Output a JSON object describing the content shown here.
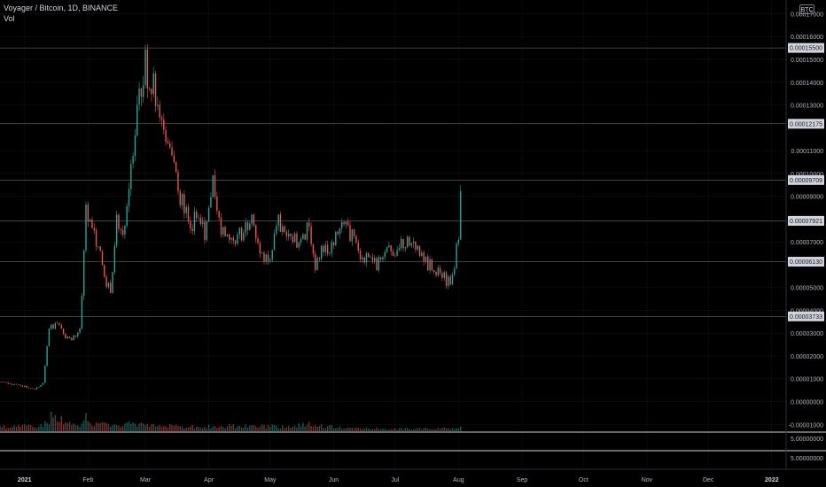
{
  "legend": {
    "symbol_line": "Voyager / Bitcoin, 1D, BINANCE",
    "volume_label": "Vol"
  },
  "currency_badge": "BTC",
  "colors": {
    "background": "#000000",
    "up": "#26a69a",
    "down": "#ef5350",
    "grid": "#2a2e39",
    "text": "#b2b5be"
  },
  "chart_data": {
    "type": "candlestick",
    "series": [
      {
        "name": "Voyager / Bitcoin, 1D, BINANCE"
      },
      {
        "name": "Vol"
      }
    ],
    "xaxis": {
      "min": "2020-12-20",
      "max": "2022-01-08",
      "ticks": [
        {
          "date": "2021-01-01",
          "label": "2021",
          "bold": true
        },
        {
          "date": "2021-02-01",
          "label": "Feb"
        },
        {
          "date": "2021-03-01",
          "label": "Mar"
        },
        {
          "date": "2021-04-01",
          "label": "Apr"
        },
        {
          "date": "2021-05-01",
          "label": "May"
        },
        {
          "date": "2021-06-01",
          "label": "Jun"
        },
        {
          "date": "2021-07-01",
          "label": "Jul"
        },
        {
          "date": "2021-08-01",
          "label": "Aug"
        },
        {
          "date": "2021-09-01",
          "label": "Sep"
        },
        {
          "date": "2021-10-01",
          "label": "Oct"
        },
        {
          "date": "2021-11-01",
          "label": "Nov"
        },
        {
          "date": "2021-12-01",
          "label": "Dec"
        },
        {
          "date": "2022-01-01",
          "label": "2022",
          "bold": true
        }
      ]
    },
    "yaxis": {
      "ylim": [
        -1.3e-05,
        0.000176
      ],
      "ticks": [
        {
          "value": 0.00017,
          "label": "0.00017000"
        },
        {
          "value": 0.00016,
          "label": "0.00016000"
        },
        {
          "value": 0.00015,
          "label": "0.00015000"
        },
        {
          "value": 0.00014,
          "label": "0.00014000"
        },
        {
          "value": 0.00013,
          "label": "0.00013000"
        },
        {
          "value": 0.00011,
          "label": "0.00011000"
        },
        {
          "value": 0.0001,
          "label": "0.00010000"
        },
        {
          "value": 9e-05,
          "label": "0.00009000"
        },
        {
          "value": 7e-05,
          "label": "0.00007000"
        },
        {
          "value": 5e-05,
          "label": "0.00005000"
        },
        {
          "value": 4e-05,
          "label": "0.00004000"
        },
        {
          "value": 3e-05,
          "label": "0.00003000"
        },
        {
          "value": 2e-05,
          "label": "0.00002000"
        },
        {
          "value": 1e-05,
          "label": "0.00001000"
        },
        {
          "value": 0.0,
          "label": "0.00000000"
        },
        {
          "value": -1e-05,
          "label": "-0.00001000"
        }
      ],
      "price_lines": [
        {
          "value": 0.000155,
          "label": "0.00015500"
        },
        {
          "value": 0.00012175,
          "label": "0.00012175"
        },
        {
          "value": 9.709e-05,
          "label": "0.00009709"
        },
        {
          "value": 7.921e-05,
          "label": "0.00007921"
        },
        {
          "value": 6.13e-05,
          "label": "0.00006130"
        },
        {
          "value": 3.733e-05,
          "label": "0.00003733"
        }
      ]
    },
    "sub_panes": [
      {
        "scale_label": "5.00000000"
      },
      {
        "scale_label": "5.00000000"
      }
    ],
    "points": [
      {
        "date": "2020-12-20",
        "close": 8.5e-06
      },
      {
        "date": "2020-12-30",
        "close": 7e-06
      },
      {
        "date": "2021-01-06",
        "close": 5.5e-06
      },
      {
        "date": "2021-01-10",
        "close": 8e-06
      },
      {
        "date": "2021-01-13",
        "close": 3.2e-05
      },
      {
        "date": "2021-01-17",
        "close": 3.4e-05
      },
      {
        "date": "2021-01-20",
        "close": 2.9e-05
      },
      {
        "date": "2021-01-24",
        "close": 2.8e-05
      },
      {
        "date": "2021-01-28",
        "close": 3.1e-05
      },
      {
        "date": "2021-01-31",
        "close": 8.3e-05
      },
      {
        "date": "2021-02-03",
        "close": 7.5e-05
      },
      {
        "date": "2021-02-06",
        "close": 6.7e-05
      },
      {
        "date": "2021-02-10",
        "close": 5.2e-05
      },
      {
        "date": "2021-02-12",
        "close": 4.9e-05
      },
      {
        "date": "2021-02-15",
        "close": 7.8e-05
      },
      {
        "date": "2021-02-18",
        "close": 7.2e-05
      },
      {
        "date": "2021-02-22",
        "close": 0.000105
      },
      {
        "date": "2021-02-25",
        "close": 0.00013
      },
      {
        "date": "2021-03-01",
        "close": 0.000147
      },
      {
        "date": "2021-03-04",
        "close": 0.00014
      },
      {
        "date": "2021-03-08",
        "close": 0.000128
      },
      {
        "date": "2021-03-11",
        "close": 0.000115
      },
      {
        "date": "2021-03-15",
        "close": 0.0001
      },
      {
        "date": "2021-03-19",
        "close": 8.7e-05
      },
      {
        "date": "2021-03-23",
        "close": 7.7e-05
      },
      {
        "date": "2021-03-26",
        "close": 8.2e-05
      },
      {
        "date": "2021-03-30",
        "close": 7.3e-05
      },
      {
        "date": "2021-04-03",
        "close": 9.4e-05
      },
      {
        "date": "2021-04-07",
        "close": 7.6e-05
      },
      {
        "date": "2021-04-10",
        "close": 7.2e-05
      },
      {
        "date": "2021-04-14",
        "close": 6.9e-05
      },
      {
        "date": "2021-04-18",
        "close": 7.6e-05
      },
      {
        "date": "2021-04-21",
        "close": 8e-05
      },
      {
        "date": "2021-04-25",
        "close": 7.2e-05
      },
      {
        "date": "2021-04-28",
        "close": 6e-05
      },
      {
        "date": "2021-05-01",
        "close": 6.5e-05
      },
      {
        "date": "2021-05-04",
        "close": 8e-05
      },
      {
        "date": "2021-05-08",
        "close": 7.4e-05
      },
      {
        "date": "2021-05-12",
        "close": 7e-05
      },
      {
        "date": "2021-05-16",
        "close": 7.1e-05
      },
      {
        "date": "2021-05-20",
        "close": 7.8e-05
      },
      {
        "date": "2021-05-23",
        "close": 5.8e-05
      },
      {
        "date": "2021-05-26",
        "close": 6.5e-05
      },
      {
        "date": "2021-05-30",
        "close": 6.6e-05
      },
      {
        "date": "2021-06-03",
        "close": 7.2e-05
      },
      {
        "date": "2021-06-06",
        "close": 7.9e-05
      },
      {
        "date": "2021-06-10",
        "close": 7.2e-05
      },
      {
        "date": "2021-06-14",
        "close": 6.4e-05
      },
      {
        "date": "2021-06-18",
        "close": 6.2e-05
      },
      {
        "date": "2021-06-22",
        "close": 6e-05
      },
      {
        "date": "2021-06-26",
        "close": 6.4e-05
      },
      {
        "date": "2021-06-30",
        "close": 6.6e-05
      },
      {
        "date": "2021-07-04",
        "close": 7.2e-05
      },
      {
        "date": "2021-07-08",
        "close": 6.8e-05
      },
      {
        "date": "2021-07-12",
        "close": 6.5e-05
      },
      {
        "date": "2021-07-16",
        "close": 6.1e-05
      },
      {
        "date": "2021-07-20",
        "close": 5.8e-05
      },
      {
        "date": "2021-07-24",
        "close": 5.5e-05
      },
      {
        "date": "2021-07-28",
        "close": 5.2e-05
      },
      {
        "date": "2021-07-30",
        "close": 6e-05
      },
      {
        "date": "2021-08-01",
        "close": 7.3e-05
      },
      {
        "date": "2021-08-02",
        "close": 8.9e-05
      }
    ],
    "volume_profile": [
      {
        "date": "2020-12-20",
        "volume": 0.2
      },
      {
        "date": "2021-01-08",
        "volume": 0.25
      },
      {
        "date": "2021-01-12",
        "volume": 0.45
      },
      {
        "date": "2021-01-15",
        "volume": 0.7
      },
      {
        "date": "2021-01-18",
        "volume": 0.55
      },
      {
        "date": "2021-01-24",
        "volume": 0.3
      },
      {
        "date": "2021-01-28",
        "volume": 0.25
      },
      {
        "date": "2021-01-31",
        "volume": 0.9
      },
      {
        "date": "2021-02-02",
        "volume": 0.35
      },
      {
        "date": "2021-02-10",
        "volume": 0.3
      },
      {
        "date": "2021-02-18",
        "volume": 0.35
      },
      {
        "date": "2021-02-25",
        "volume": 0.3
      },
      {
        "date": "2021-03-05",
        "volume": 0.25
      },
      {
        "date": "2021-03-20",
        "volume": 0.2
      },
      {
        "date": "2021-04-05",
        "volume": 0.22
      },
      {
        "date": "2021-04-25",
        "volume": 0.25
      },
      {
        "date": "2021-05-10",
        "volume": 0.2
      },
      {
        "date": "2021-05-20",
        "volume": 0.3
      },
      {
        "date": "2021-06-05",
        "volume": 0.15
      },
      {
        "date": "2021-07-01",
        "volume": 0.1
      },
      {
        "date": "2021-08-02",
        "volume": 0.15
      }
    ]
  }
}
